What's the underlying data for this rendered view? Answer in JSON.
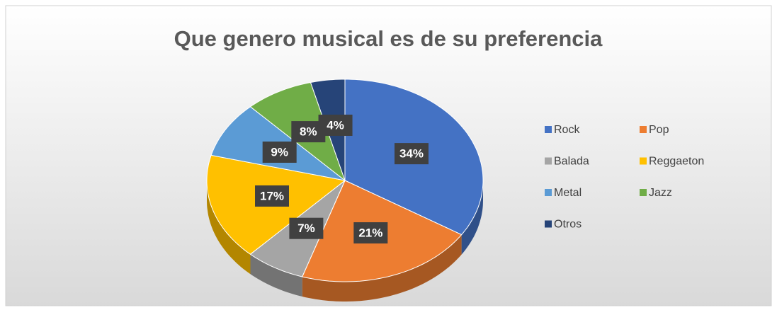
{
  "chart_data": {
    "type": "pie",
    "title": "Que genero musical es de su preferencia",
    "categories": [
      "Rock",
      "Pop",
      "Balada",
      "Reggaeton",
      "Metal",
      "Jazz",
      "Otros"
    ],
    "values": [
      34,
      21,
      7,
      17,
      9,
      8,
      4
    ],
    "value_labels": [
      "34%",
      "21%",
      "7%",
      "17%",
      "9%",
      "8%",
      "4%"
    ],
    "colors": [
      "#4472c4",
      "#ed7d31",
      "#a5a5a5",
      "#ffc000",
      "#5b9bd5",
      "#70ad47",
      "#264478"
    ],
    "legend": "right"
  }
}
